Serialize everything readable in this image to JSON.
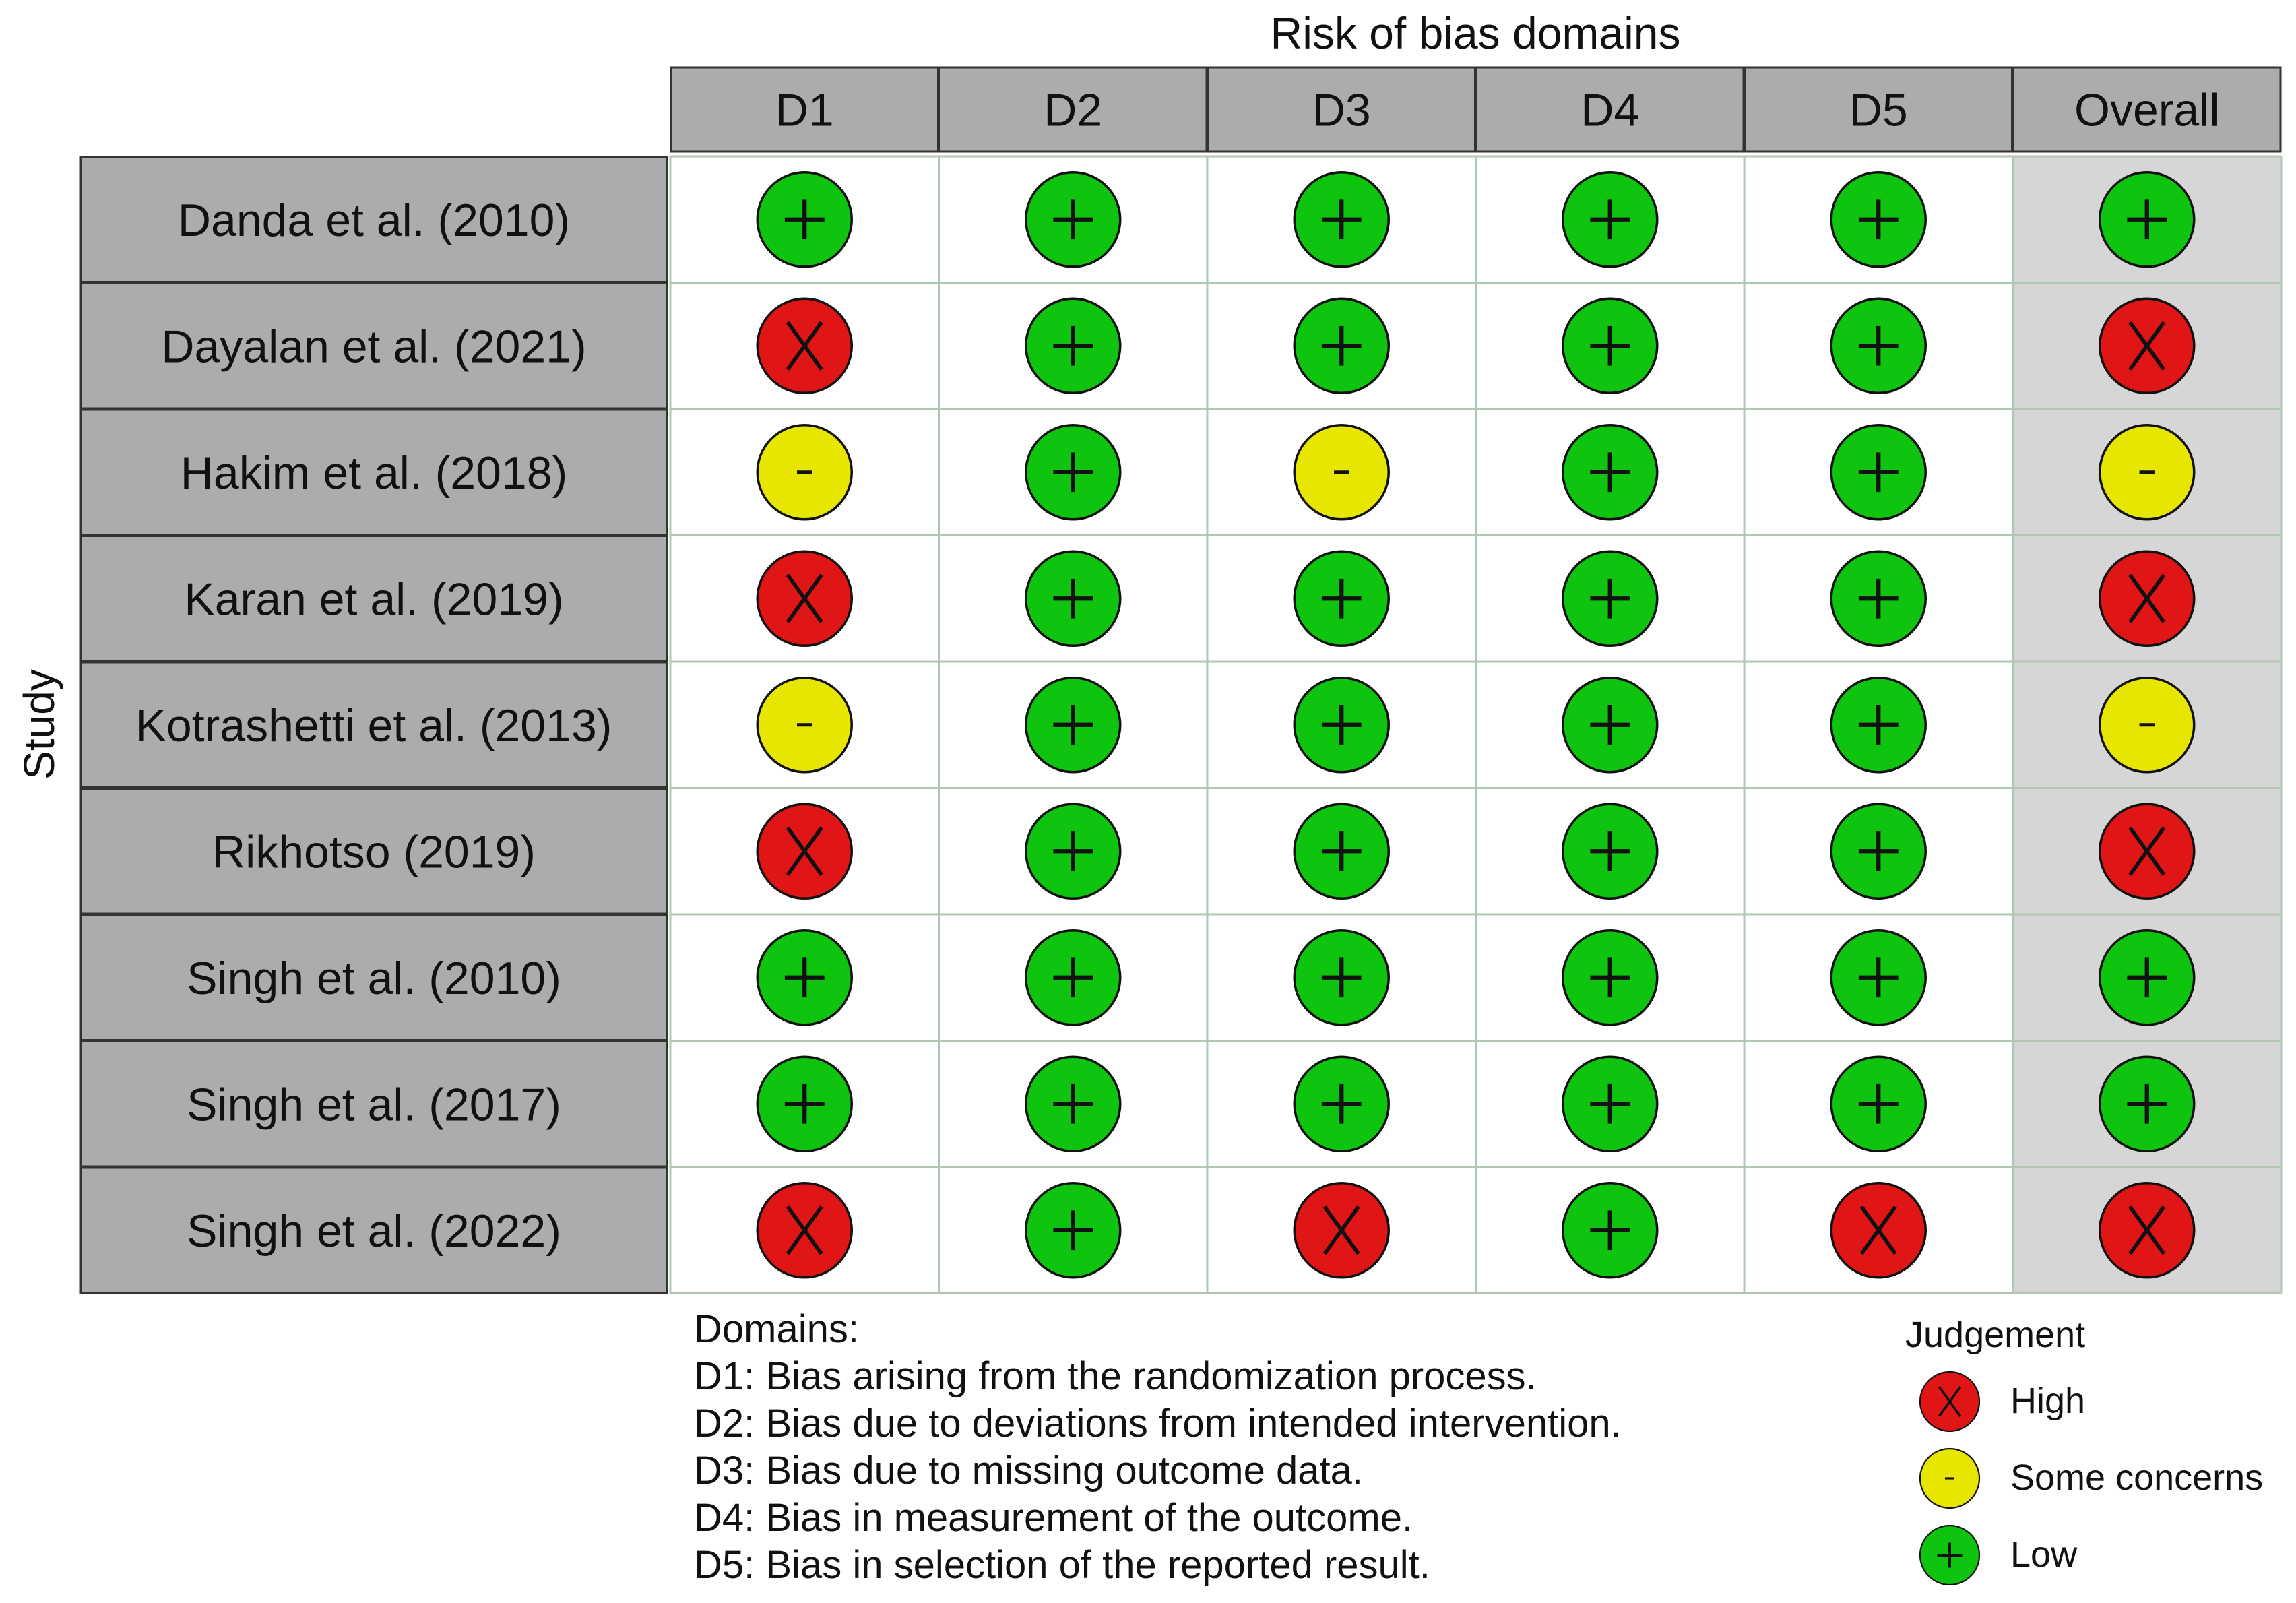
{
  "chart_data": {
    "type": "table",
    "title": "Risk of bias domains",
    "ylabel": "Study",
    "columns": [
      "D1",
      "D2",
      "D3",
      "D4",
      "D5",
      "Overall"
    ],
    "rows": [
      {
        "study": "Danda et al. (2010)",
        "judgements": [
          "Low",
          "Low",
          "Low",
          "Low",
          "Low",
          "Low"
        ]
      },
      {
        "study": "Dayalan et al. (2021)",
        "judgements": [
          "High",
          "Low",
          "Low",
          "Low",
          "Low",
          "High"
        ]
      },
      {
        "study": "Hakim et al. (2018)",
        "judgements": [
          "Some concerns",
          "Low",
          "Some concerns",
          "Low",
          "Low",
          "Some concerns"
        ]
      },
      {
        "study": "Karan et al. (2019)",
        "judgements": [
          "High",
          "Low",
          "Low",
          "Low",
          "Low",
          "High"
        ]
      },
      {
        "study": "Kotrashetti et al. (2013)",
        "judgements": [
          "Some concerns",
          "Low",
          "Low",
          "Low",
          "Low",
          "Some concerns"
        ]
      },
      {
        "study": "Rikhotso (2019)",
        "judgements": [
          "High",
          "Low",
          "Low",
          "Low",
          "Low",
          "High"
        ]
      },
      {
        "study": "Singh et al. (2010)",
        "judgements": [
          "Low",
          "Low",
          "Low",
          "Low",
          "Low",
          "Low"
        ]
      },
      {
        "study": "Singh et al. (2017)",
        "judgements": [
          "Low",
          "Low",
          "Low",
          "Low",
          "Low",
          "Low"
        ]
      },
      {
        "study": "Singh et al. (2022)",
        "judgements": [
          "High",
          "Low",
          "High",
          "Low",
          "High",
          "High"
        ]
      }
    ],
    "judgement_levels": [
      {
        "name": "High",
        "symbol": "X",
        "color": "#e01515"
      },
      {
        "name": "Some concerns",
        "symbol": "-",
        "color": "#e6e600"
      },
      {
        "name": "Low",
        "symbol": "+",
        "color": "#0ec40e"
      }
    ],
    "domains_legend": {
      "title": "Domains:",
      "items": [
        "D1: Bias arising from the randomization process.",
        "D2: Bias due to deviations from intended intervention.",
        "D3: Bias due to missing outcome data.",
        "D4: Bias in measurement of the outcome.",
        "D5: Bias in selection of the reported result."
      ]
    },
    "judgement_legend_title": "Judgement",
    "colors": {
      "header_fill": "#acacac",
      "overall_fill": "#d6d6d6",
      "grid_line": "#b0c8b0",
      "border": "#333333"
    }
  }
}
